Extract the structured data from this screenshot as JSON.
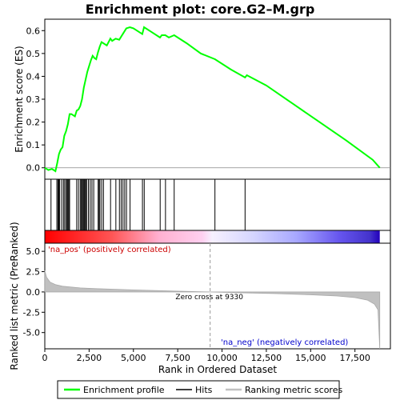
{
  "chart_data": {
    "type": "line",
    "title": "Enrichment plot: core.G2–M.grp",
    "es_panel": {
      "ylabel": "Enrichment score (ES)",
      "ylim": [
        -0.05,
        0.65
      ],
      "yticks": [
        "0.0",
        "0.1",
        "0.2",
        "0.3",
        "0.4",
        "0.5",
        "0.6"
      ],
      "ytick_values": [
        0.0,
        0.1,
        0.2,
        0.3,
        0.4,
        0.5,
        0.6
      ],
      "line_color": "#00ff00",
      "points": [
        [
          0,
          0.0
        ],
        [
          200,
          -0.01
        ],
        [
          400,
          -0.005
        ],
        [
          600,
          -0.015
        ],
        [
          700,
          0.02
        ],
        [
          800,
          0.06
        ],
        [
          900,
          0.08
        ],
        [
          1000,
          0.09
        ],
        [
          1100,
          0.14
        ],
        [
          1200,
          0.16
        ],
        [
          1300,
          0.19
        ],
        [
          1400,
          0.235
        ],
        [
          1500,
          0.235
        ],
        [
          1700,
          0.225
        ],
        [
          1800,
          0.25
        ],
        [
          1900,
          0.255
        ],
        [
          2000,
          0.27
        ],
        [
          2100,
          0.3
        ],
        [
          2200,
          0.35
        ],
        [
          2300,
          0.385
        ],
        [
          2400,
          0.42
        ],
        [
          2500,
          0.445
        ],
        [
          2600,
          0.47
        ],
        [
          2700,
          0.49
        ],
        [
          2800,
          0.48
        ],
        [
          2900,
          0.475
        ],
        [
          3000,
          0.505
        ],
        [
          3100,
          0.53
        ],
        [
          3200,
          0.55
        ],
        [
          3300,
          0.545
        ],
        [
          3500,
          0.535
        ],
        [
          3700,
          0.565
        ],
        [
          3800,
          0.555
        ],
        [
          4000,
          0.565
        ],
        [
          4200,
          0.56
        ],
        [
          4400,
          0.585
        ],
        [
          4600,
          0.61
        ],
        [
          4800,
          0.615
        ],
        [
          5000,
          0.61
        ],
        [
          5300,
          0.595
        ],
        [
          5500,
          0.585
        ],
        [
          5600,
          0.615
        ],
        [
          6000,
          0.595
        ],
        [
          6500,
          0.57
        ],
        [
          6600,
          0.58
        ],
        [
          6800,
          0.58
        ],
        [
          7000,
          0.57
        ],
        [
          7300,
          0.58
        ],
        [
          8000,
          0.545
        ],
        [
          8800,
          0.5
        ],
        [
          9600,
          0.475
        ],
        [
          10500,
          0.43
        ],
        [
          11300,
          0.395
        ],
        [
          11400,
          0.405
        ],
        [
          12500,
          0.36
        ],
        [
          14000,
          0.28
        ],
        [
          15500,
          0.2
        ],
        [
          17000,
          0.12
        ],
        [
          18500,
          0.035
        ],
        [
          18900,
          0.0
        ]
      ]
    },
    "hits_panel": {
      "hit_positions": [
        350,
        680,
        740,
        790,
        840,
        950,
        1050,
        1120,
        1200,
        1260,
        1300,
        1350,
        1400,
        1800,
        1900,
        2000,
        2060,
        2110,
        2160,
        2210,
        2260,
        2310,
        2360,
        2460,
        2560,
        2660,
        2760,
        3010,
        3060,
        3110,
        3210,
        3310,
        3710,
        4010,
        4210,
        4310,
        4410,
        4510,
        4610,
        4810,
        5510,
        5610,
        6510,
        6810,
        7300,
        9600,
        11300
      ]
    },
    "ranked_panel": {
      "ylabel": "Ranked list metric (PreRanked)",
      "ylim": [
        -7,
        6
      ],
      "yticks": [
        "5.0",
        "2.5",
        "0.0",
        "-2.5",
        "-5.0"
      ],
      "ytick_values": [
        5.0,
        2.5,
        0.0,
        -2.5,
        -5.0
      ],
      "points": [
        [
          0,
          2.6
        ],
        [
          100,
          1.8
        ],
        [
          300,
          1.2
        ],
        [
          600,
          0.9
        ],
        [
          1000,
          0.7
        ],
        [
          2000,
          0.5
        ],
        [
          3000,
          0.4
        ],
        [
          5000,
          0.25
        ],
        [
          7000,
          0.12
        ],
        [
          9330,
          0.0
        ],
        [
          11000,
          -0.1
        ],
        [
          13000,
          -0.2
        ],
        [
          15000,
          -0.35
        ],
        [
          16500,
          -0.5
        ],
        [
          17500,
          -0.7
        ],
        [
          18200,
          -1.0
        ],
        [
          18600,
          -1.5
        ],
        [
          18800,
          -2.2
        ],
        [
          18900,
          -7.0
        ]
      ],
      "zero_cross_label": "Zero cross at 9330",
      "zero_cross": 9330,
      "pos_label": "'na_pos' (positively correlated)",
      "neg_label": "'na_neg' (negatively correlated)"
    },
    "x_axis": {
      "xlabel": "Rank in Ordered Dataset",
      "xlim": [
        0,
        19500
      ],
      "xticks": [
        "0",
        "2,500",
        "5,000",
        "7,500",
        "10,000",
        "12,500",
        "15,000",
        "17,500"
      ],
      "xtick_values": [
        0,
        2500,
        5000,
        7500,
        10000,
        12500,
        15000,
        17500
      ],
      "n_genes": 18900
    },
    "legend": {
      "placement": "bottom",
      "items": [
        "Enrichment profile",
        "Hits",
        "Ranking metric scores"
      ]
    }
  }
}
